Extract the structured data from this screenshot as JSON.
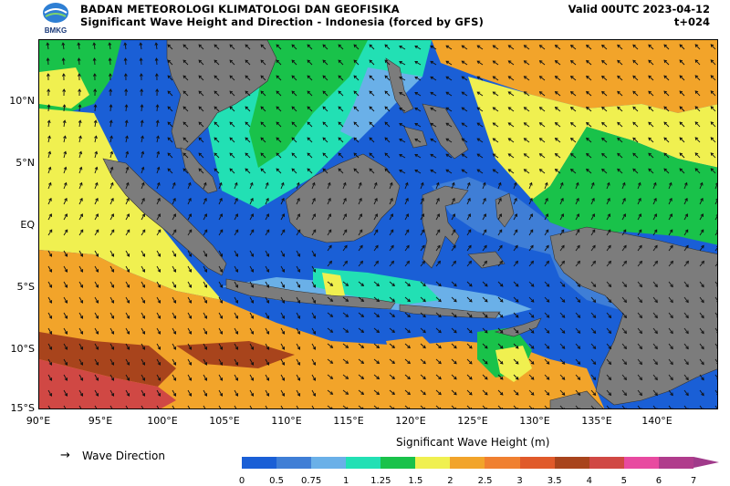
{
  "header": {
    "org": "BADAN METEOROLOGI KLIMATOLOGI DAN GEOFISIKA",
    "subtitle": "Significant Wave Height and Direction - Indonesia (forced by GFS)",
    "valid": "Valid 00UTC 2023-04-12",
    "lead": "t+024",
    "logo_text": "BMKG"
  },
  "axes": {
    "x_ticks": [
      "90°E",
      "95°E",
      "100°E",
      "105°E",
      "110°E",
      "115°E",
      "120°E",
      "125°E",
      "130°E",
      "135°E",
      "140°E"
    ],
    "y_ticks": [
      "10°N",
      "5°N",
      "EQ",
      "5°S",
      "10°S",
      "15°S"
    ]
  },
  "legend": {
    "arrow_glyph": "→",
    "label": "Wave Direction"
  },
  "colorbar": {
    "title": "Significant Wave Height (m)",
    "ticks": [
      "0",
      "0.5",
      "0.75",
      "1",
      "1.25",
      "1.5",
      "2",
      "2.5",
      "3",
      "3.5",
      "4",
      "5",
      "6",
      "7"
    ],
    "colors": [
      "#1a5fd6",
      "#3f7ed6",
      "#6ab0e8",
      "#22e0b4",
      "#19c24a",
      "#f0f050",
      "#f2a42a",
      "#f08030",
      "#e05a2a",
      "#a8441c",
      "#d04844",
      "#e84aa0",
      "#b03c8c"
    ],
    "land_color": "#7c7c7c"
  }
}
